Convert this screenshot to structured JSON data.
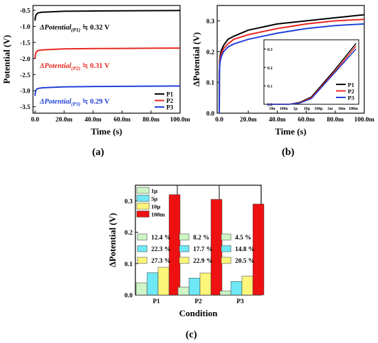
{
  "colors": {
    "P1": "#000000",
    "P2": "#e8261e",
    "P3": "#1f3fd6",
    "c1": "#cdf5c6",
    "c2": "#6ee8f5",
    "c3": "#fbf57a",
    "c4": "#ee1111"
  },
  "captions": {
    "a": "(a)",
    "b": "(b)",
    "c": "(c)"
  },
  "chart_data": [
    {
      "type": "line",
      "xlabel": "Time (s)",
      "ylabel": "Potential (V)",
      "xlim": [
        0,
        100
      ],
      "ylim": [
        -3.7,
        -0.35
      ],
      "xticks": [
        "0.0",
        "20.0m",
        "40.0m",
        "60.0m",
        "80.0m",
        "100.0m"
      ],
      "xtick_vals": [
        0,
        20,
        40,
        60,
        80,
        100
      ],
      "yticks": [
        "-0.5",
        "-1.0",
        "-1.5",
        "-2.0",
        "-2.5",
        "-3.0",
        "-3.5"
      ],
      "ytick_vals": [
        -0.5,
        -1.0,
        -1.5,
        -2.0,
        -2.5,
        -3.0,
        -3.5
      ],
      "legend": [
        "P1",
        "P2",
        "P3"
      ],
      "annotations": [
        {
          "prefix": "ΔPotential",
          "sub": "(P1)",
          "suffix": " ≒ 0.32 V",
          "series": "P1"
        },
        {
          "prefix": "ΔPotential",
          "sub": "(P2)",
          "suffix": " ≒ 0.31 V",
          "series": "P2"
        },
        {
          "prefix": "ΔPotential",
          "sub": "(P3)",
          "suffix": " ≒ 0.29 V",
          "series": "P3"
        }
      ],
      "series": [
        {
          "name": "P1",
          "x": [
            0,
            0.2,
            0.5,
            1,
            2,
            5,
            10,
            20,
            40,
            60,
            80,
            100
          ],
          "y": [
            -0.82,
            -0.72,
            -0.66,
            -0.62,
            -0.58,
            -0.56,
            -0.55,
            -0.53,
            -0.52,
            -0.515,
            -0.51,
            -0.505
          ]
        },
        {
          "name": "P2",
          "x": [
            0,
            0.2,
            0.5,
            1,
            2,
            5,
            10,
            20,
            40,
            60,
            80,
            100
          ],
          "y": [
            -1.99,
            -1.89,
            -1.83,
            -1.79,
            -1.75,
            -1.73,
            -1.72,
            -1.7,
            -1.69,
            -1.685,
            -1.68,
            -1.675
          ]
        },
        {
          "name": "P3",
          "x": [
            0,
            0.2,
            0.5,
            1,
            2,
            5,
            10,
            20,
            40,
            60,
            80,
            100
          ],
          "y": [
            -3.16,
            -3.06,
            -3.0,
            -2.96,
            -2.93,
            -2.91,
            -2.9,
            -2.88,
            -2.87,
            -2.865,
            -2.86,
            -2.855
          ]
        }
      ]
    },
    {
      "type": "line",
      "xlabel": "Time (s)",
      "ylabel": "ΔPotential (V)",
      "xlim": [
        0,
        100
      ],
      "ylim": [
        0,
        0.35
      ],
      "xticks": [
        "0.0",
        "20.0m",
        "40.0m",
        "60.0m",
        "80.0m",
        "100.0m"
      ],
      "xtick_vals": [
        0,
        20,
        40,
        60,
        80,
        100
      ],
      "yticks": [
        "0.0",
        "0.1",
        "0.2",
        "0.3"
      ],
      "ytick_vals": [
        0,
        0.1,
        0.2,
        0.3
      ],
      "series": [
        {
          "name": "P1",
          "x": [
            0,
            0.1,
            0.3,
            0.7,
            1.5,
            3,
            6,
            10,
            20,
            40,
            60,
            80,
            100
          ],
          "y": [
            0,
            0.13,
            0.17,
            0.19,
            0.205,
            0.22,
            0.24,
            0.25,
            0.27,
            0.29,
            0.3,
            0.31,
            0.32
          ]
        },
        {
          "name": "P2",
          "x": [
            0,
            0.1,
            0.3,
            0.7,
            1.5,
            3,
            6,
            10,
            20,
            40,
            60,
            80,
            100
          ],
          "y": [
            0,
            0.12,
            0.16,
            0.18,
            0.195,
            0.21,
            0.225,
            0.24,
            0.255,
            0.275,
            0.29,
            0.3,
            0.305
          ]
        },
        {
          "name": "P3",
          "x": [
            0,
            0.1,
            0.3,
            0.7,
            1.5,
            3,
            6,
            10,
            20,
            40,
            60,
            80,
            100
          ],
          "y": [
            0,
            0.11,
            0.15,
            0.17,
            0.185,
            0.2,
            0.215,
            0.225,
            0.24,
            0.26,
            0.275,
            0.285,
            0.29
          ]
        }
      ],
      "inset": {
        "xscale": "log",
        "xlim": [
          10,
          100000
        ],
        "ylim": [
          0,
          0.35
        ],
        "xticks": [
          "10u",
          "100u",
          "1µ",
          "10µ",
          "100µ",
          "1m",
          "10m",
          "100m"
        ],
        "yticks": [
          "0.0",
          "0.1",
          "0.2",
          "0.3"
        ],
        "ytick_vals": [
          0,
          0.1,
          0.2,
          0.3
        ],
        "legend": [
          "P1",
          "P2",
          "P3"
        ],
        "series": [
          {
            "name": "P1",
            "x": [
              10,
              100,
              300,
              1000,
              10000,
              100000
            ],
            "y": [
              0,
              0,
              0.01,
              0.04,
              0.18,
              0.33
            ]
          },
          {
            "name": "P2",
            "x": [
              10,
              100,
              300,
              1000,
              10000,
              100000
            ],
            "y": [
              0,
              0,
              0.008,
              0.035,
              0.17,
              0.315
            ]
          },
          {
            "name": "P3",
            "x": [
              10,
              100,
              300,
              1000,
              10000,
              100000
            ],
            "y": [
              0,
              0,
              0.006,
              0.03,
              0.165,
              0.3
            ]
          }
        ]
      }
    },
    {
      "type": "bar",
      "xlabel": "Condition",
      "ylabel": "ΔPotential (V)",
      "categories": [
        "P1",
        "P2",
        "P3"
      ],
      "ylim": [
        0,
        0.35
      ],
      "yticks": [
        "0.0",
        "0.1",
        "0.2",
        "0.3"
      ],
      "ytick_vals": [
        0,
        0.1,
        0.2,
        0.3
      ],
      "series": [
        {
          "name": "1µ",
          "values": [
            0.039,
            0.025,
            0.013
          ]
        },
        {
          "name": "5µ",
          "values": [
            0.071,
            0.054,
            0.043
          ]
        },
        {
          "name": "10µ",
          "values": [
            0.088,
            0.07,
            0.06
          ]
        },
        {
          "name": "100m",
          "values": [
            0.32,
            0.305,
            0.29
          ]
        }
      ],
      "percent_labels": [
        [
          "12.4 %",
          "22.3 %",
          "27.3 %"
        ],
        [
          "8.2 %",
          "17.7 %",
          "22.9 %"
        ],
        [
          "4.5 %",
          "14.8 %",
          "20.5 %"
        ]
      ]
    }
  ]
}
